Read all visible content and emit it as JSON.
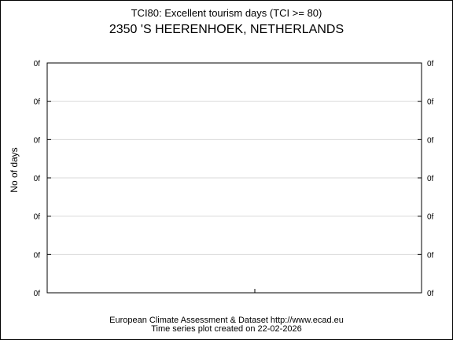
{
  "chart_data": {
    "type": "line",
    "title": "TCI80: Excellent tourism days (TCI >= 80)",
    "subtitle": "2350 'S HEERENHOEK, NETHERLANDS",
    "xlabel": "",
    "ylabel": "No of days",
    "yticks": [
      "0f",
      "0f",
      "0f",
      "0f",
      "0f",
      "0f",
      "0f"
    ],
    "grid": true,
    "series": []
  },
  "footer": {
    "line1": "European Climate Assessment & Dataset  http://www.ecad.eu",
    "line2": "Time series plot created on 22-02-2026"
  },
  "colors": {
    "grid": "#d9d9d9",
    "axis": "#000000",
    "background": "#ffffff"
  }
}
